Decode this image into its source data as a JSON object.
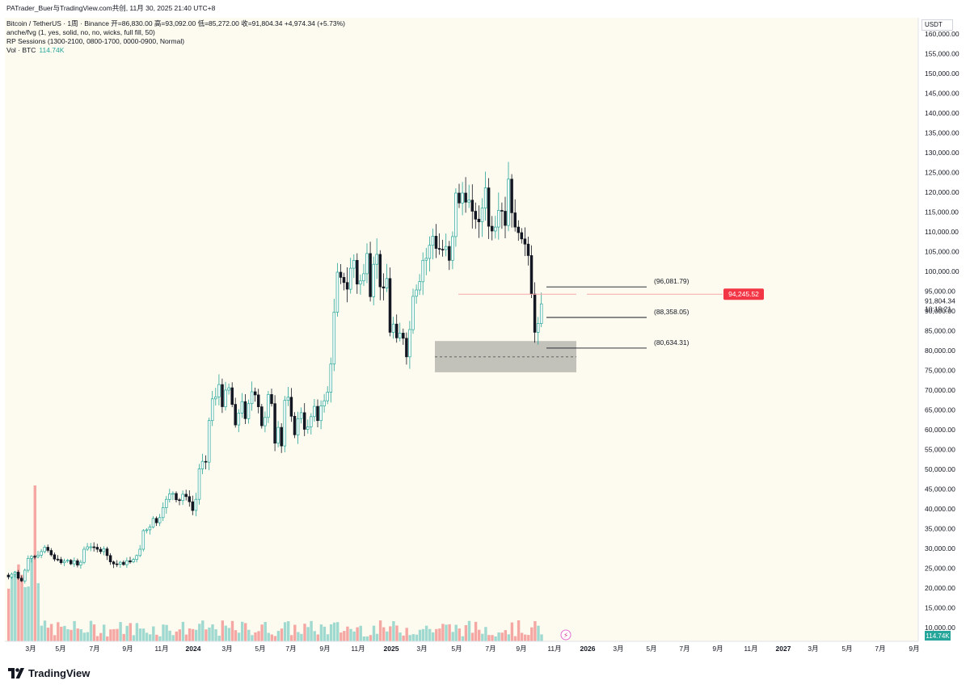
{
  "header": {
    "publisher": "PATrader_Buer与TradingView.com共创, 11月 30, 2025 21:40 UTC+8",
    "symbol_line": "Bitcoin / TetherUS · 1周 · Binance  开=86,830.00  高=93,092.00  低=85,272.00  收=91,804.34  +4,974.34 (+5.73%)",
    "indicator_1": "anche/fvg (1, yes, solid, no, no, wicks, full fill, 50)",
    "indicator_2": "RP Sessions (1300-2100, 0800-1700, 0000-0900, Normal)",
    "vol_label": "Vol · BTC",
    "vol_value": "114.74K"
  },
  "currency": "USDT",
  "colors": {
    "background": "#fdfbef",
    "up": "#26a69a",
    "down": "#131722",
    "vol_up": "#9fd9cf",
    "vol_down": "#f4a7a3",
    "tag_red": "#f23645",
    "fvg_zone": "#b8b7b0"
  },
  "chart_data": {
    "type": "candlestick",
    "timeframe": "1W",
    "y_axis": {
      "range": [
        7000,
        161000
      ],
      "ticks": [
        "10,000.00",
        "15,000.00",
        "20,000.00",
        "25,000.00",
        "30,000.00",
        "35,000.00",
        "40,000.00",
        "45,000.00",
        "50,000.00",
        "55,000.00",
        "60,000.00",
        "65,000.00",
        "70,000.00",
        "75,000.00",
        "80,000.00",
        "85,000.00",
        "90,000.00",
        "95,000.00",
        "100,000.00",
        "105,000.00",
        "110,000.00",
        "115,000.00",
        "120,000.00",
        "125,000.00",
        "130,000.00",
        "135,000.00",
        "140,000.00",
        "145,000.00",
        "150,000.00",
        "155,000.00",
        "160,000.00"
      ]
    },
    "x_axis": {
      "tick_labels": [
        "3月",
        "5月",
        "7月",
        "9月",
        "11月",
        "2024",
        "3月",
        "5月",
        "7月",
        "9月",
        "11月",
        "2025",
        "3月",
        "5月",
        "7月",
        "9月",
        "11月",
        "2026",
        "3月",
        "5月",
        "7月",
        "9月",
        "11月",
        "2027",
        "3月",
        "5月",
        "7月",
        "9月"
      ],
      "bold_ticks": [
        "2024",
        "2025",
        "2026",
        "2027"
      ]
    },
    "ohlc_closes": [
      22800,
      23500,
      24000,
      22500,
      21800,
      24500,
      27500,
      28000,
      27900,
      28300,
      29200,
      30300,
      29500,
      28400,
      27300,
      27200,
      26400,
      26800,
      27000,
      26100,
      26900,
      25800,
      26500,
      29800,
      30400,
      30400,
      30300,
      29800,
      29200,
      29900,
      28200,
      26600,
      26100,
      26000,
      26500,
      25900,
      26900,
      26600,
      27200,
      28200,
      29800,
      34500,
      34700,
      35400,
      37600,
      36500,
      37800,
      40300,
      42400,
      43800,
      43900,
      42300,
      42100,
      43700,
      43100,
      41800,
      39600,
      42400,
      50100,
      52000,
      51800,
      62300,
      67800,
      68300,
      71400,
      65800,
      70000,
      70600,
      66400,
      61200,
      64200,
      67100,
      62800,
      66600,
      69600,
      68800,
      65800,
      61000,
      63100,
      68900,
      66600,
      56600,
      60600,
      55900,
      67400,
      68200,
      63400,
      58700,
      62800,
      64300,
      60100,
      60700,
      63300,
      65900,
      62300,
      66000,
      67300,
      69500,
      76600,
      89700,
      99800,
      98500,
      97200,
      95500,
      100800,
      102800,
      96800,
      97600,
      99400,
      104500,
      93600,
      101800,
      104300,
      96100,
      95800,
      98200,
      84600,
      86700,
      83200,
      84400,
      83100,
      78400,
      85300,
      93700,
      95300,
      97400,
      102800,
      103300,
      106600,
      108900,
      105800,
      105600,
      105500,
      106300,
      102800,
      108800,
      119800,
      117300,
      119800,
      117500,
      118000,
      115200,
      113200,
      112500,
      116000,
      121100,
      111400,
      110200,
      111200,
      115400,
      115200,
      111600,
      123300,
      114800,
      111200,
      109800,
      108200,
      106900,
      104000,
      94300,
      84600,
      86830,
      91804
    ],
    "volume_profile": "first-candles-high, spike-on-early-2023, low-otherwise",
    "fvg_zone": {
      "low": 74500,
      "high": 82400,
      "mid": 78400
    },
    "current_price": "91,804.34",
    "countdown": "10:19:21",
    "red_level": "94,245.52",
    "levels": [
      {
        "label": "(96,081.79)",
        "value": 96081.79
      },
      {
        "label": "(88,358.05)",
        "value": 88358.05
      },
      {
        "label": "(80,634.31)",
        "value": 80634.31
      }
    ],
    "volume_badge": "114.74K"
  },
  "brand": {
    "name": "TradingView"
  }
}
